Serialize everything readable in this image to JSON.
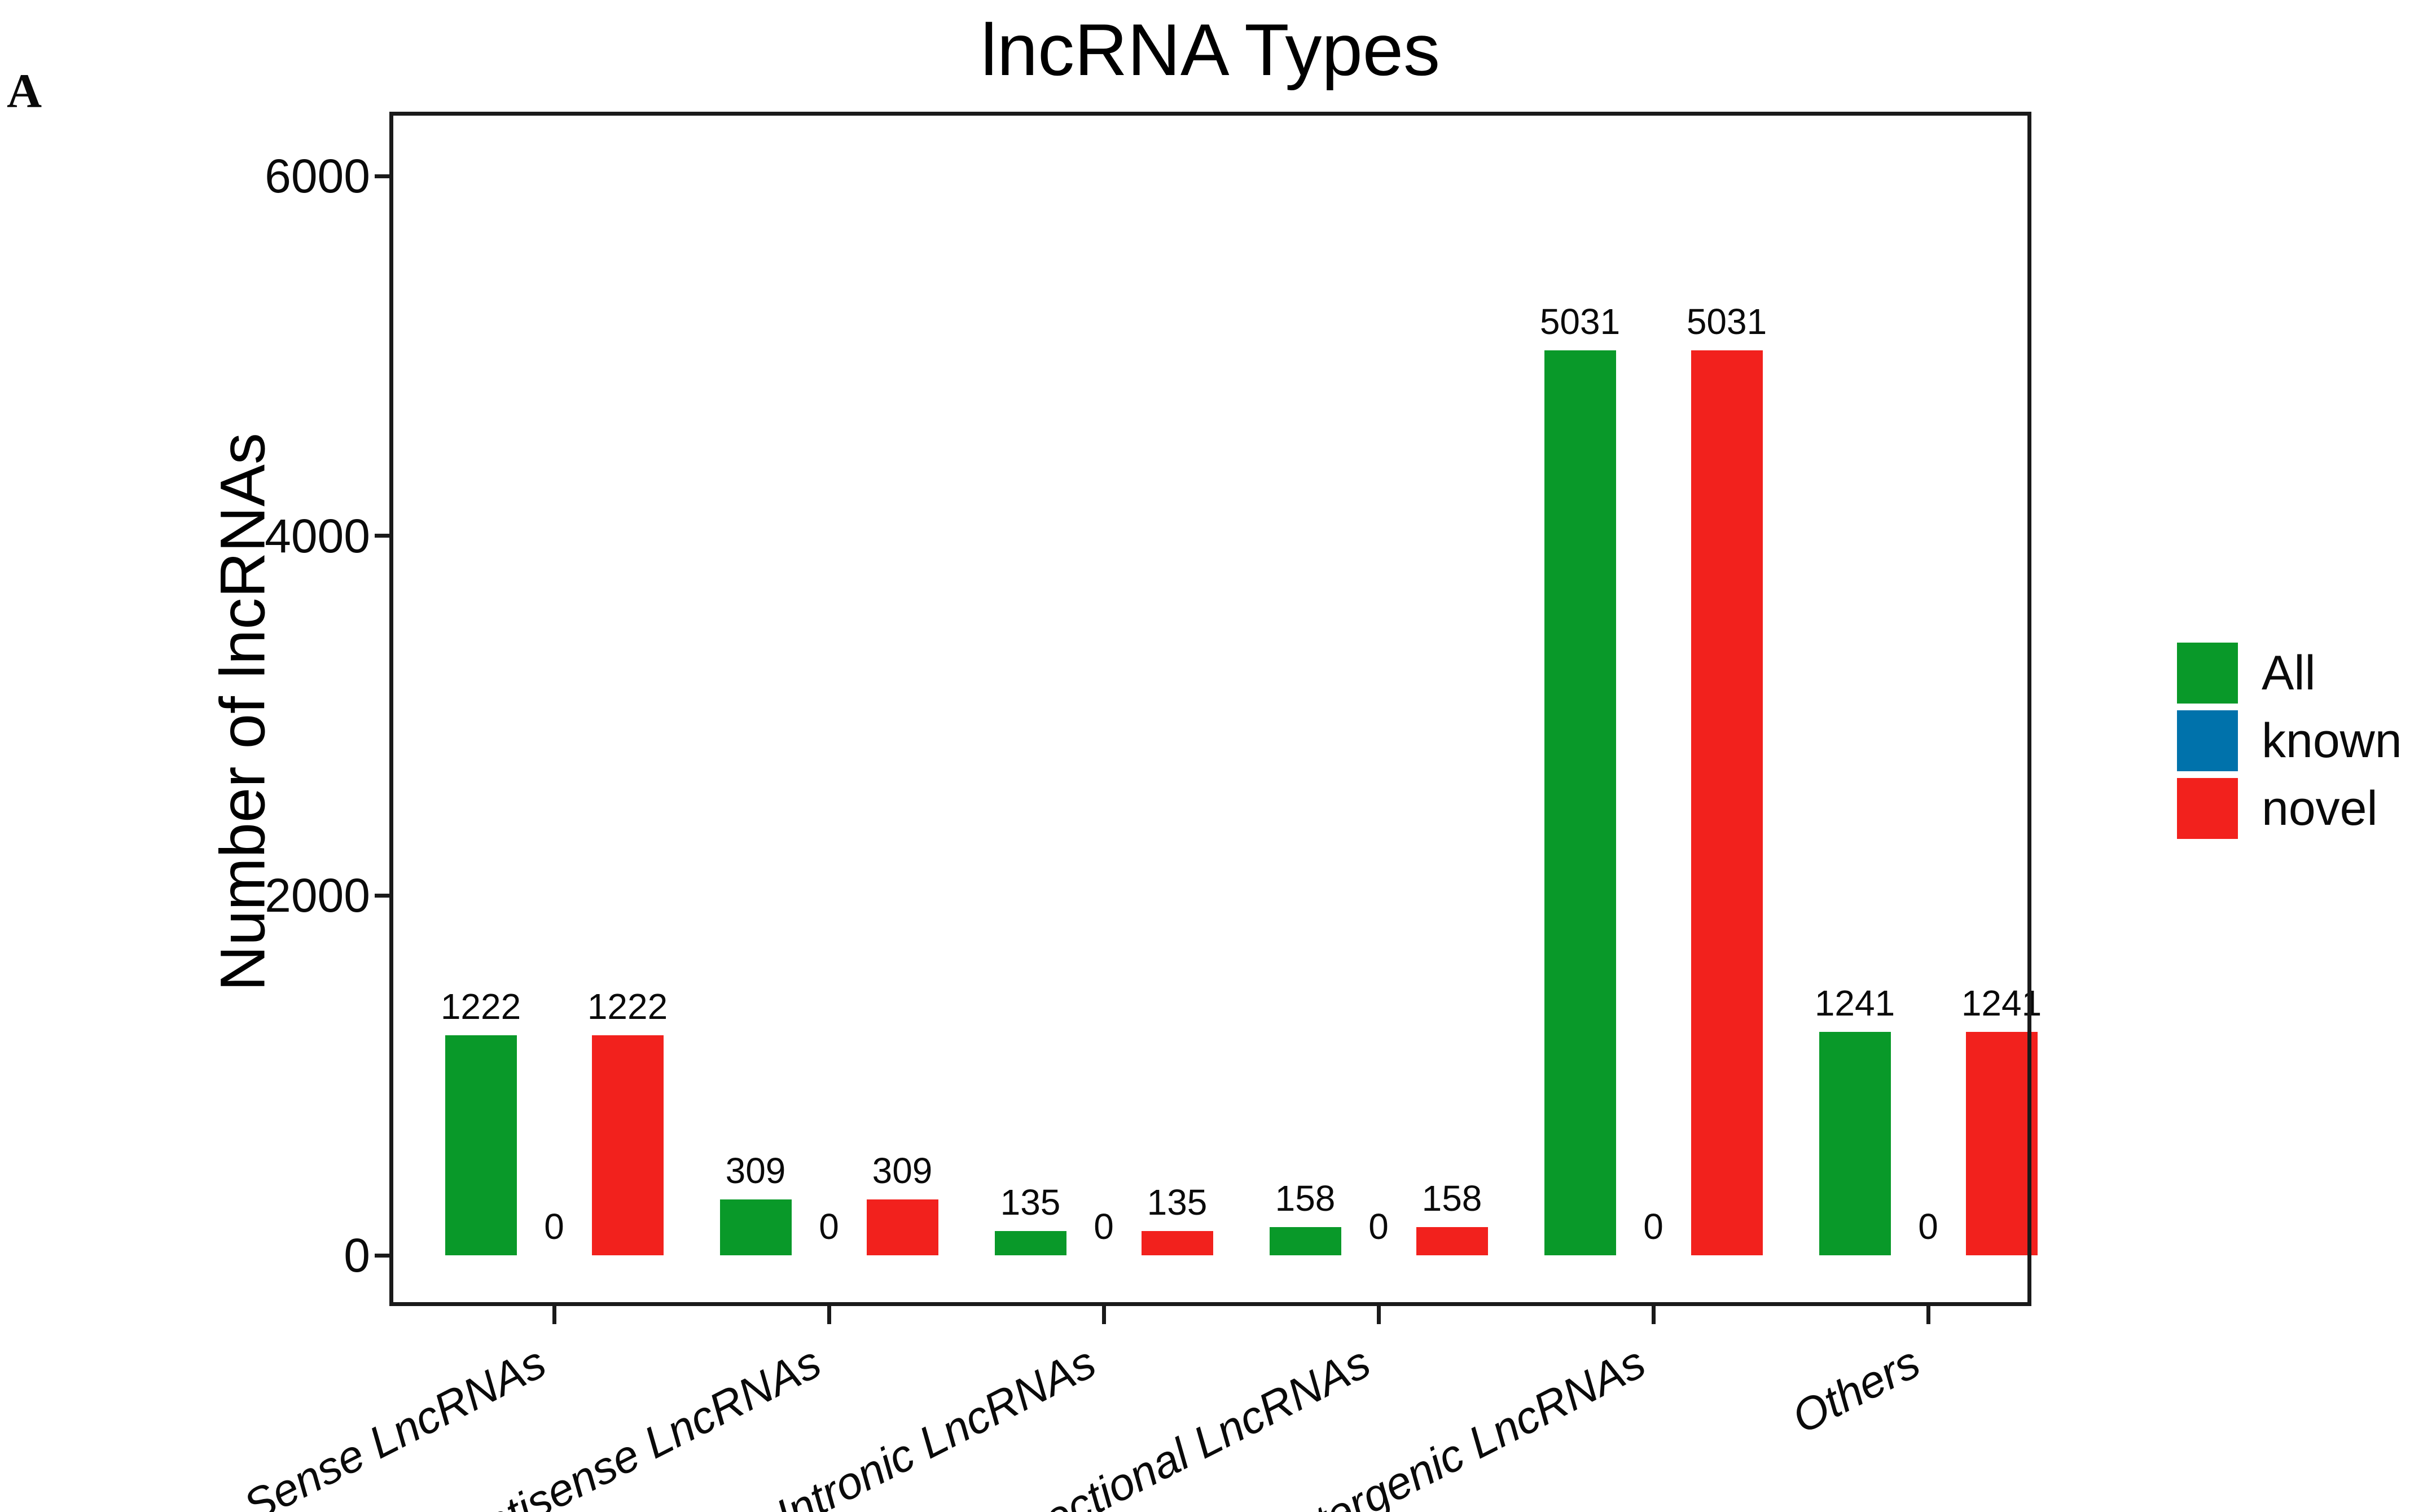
{
  "panel_label": "A",
  "chart_data": {
    "type": "bar",
    "title": "lncRNA Types",
    "xlabel": "",
    "ylabel": "Number of lncRNAs",
    "categories": [
      "Sense LncRNAs",
      "Antisense LncRNAs",
      "Intronic LncRNAs",
      "Bidirectional LncRNAs",
      "Intergenic LncRNAs",
      "Others"
    ],
    "series": [
      {
        "name": "All",
        "color": "#099929",
        "values": [
          1222,
          309,
          135,
          158,
          5031,
          1241
        ]
      },
      {
        "name": "known",
        "color": "#0072ab",
        "values": [
          0,
          0,
          0,
          0,
          0,
          0
        ]
      },
      {
        "name": "novel",
        "color": "#f2211d",
        "values": [
          1222,
          309,
          135,
          158,
          5031,
          1241
        ]
      }
    ],
    "bar_value_labels": [
      [
        1222,
        0,
        1222
      ],
      [
        309,
        0,
        309
      ],
      [
        135,
        0,
        135
      ],
      [
        158,
        0,
        158
      ],
      [
        5031,
        0,
        5031
      ],
      [
        1241,
        0,
        1241
      ]
    ],
    "ylim": [
      0,
      6300
    ],
    "yticks": [
      0,
      2000,
      4000,
      6000
    ],
    "legend_position": "right-outside",
    "grid": false,
    "axis_color": "#1a1a1a",
    "background_color": "#ffffff"
  }
}
